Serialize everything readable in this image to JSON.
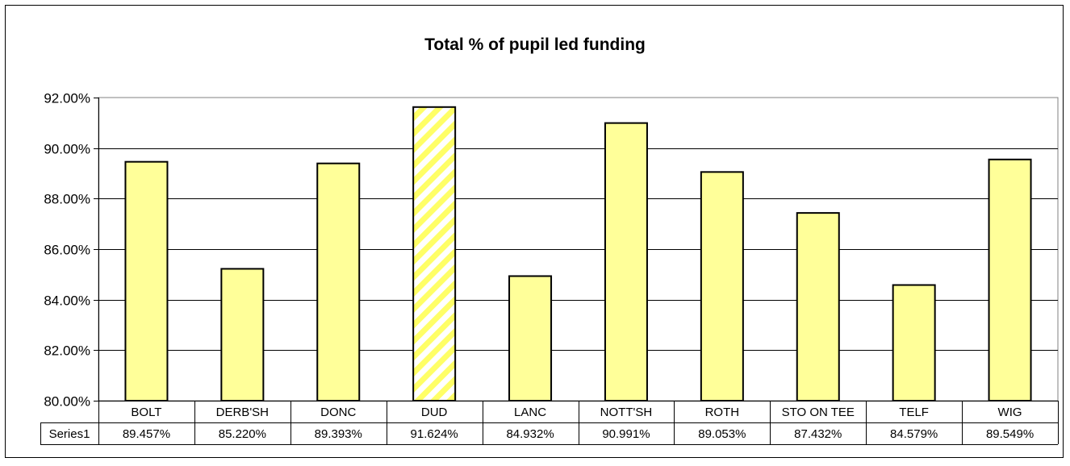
{
  "chart_data": {
    "type": "bar",
    "title": "Total % of pupil led funding",
    "categories": [
      "BOLT",
      "DERB'SH",
      "DONC",
      "DUD",
      "LANC",
      "NOTT'SH",
      "ROTH",
      "STO ON TEE",
      "TELF",
      "WIG"
    ],
    "series": [
      {
        "name": "Series1",
        "values": [
          89.457,
          85.22,
          89.393,
          91.624,
          84.932,
          90.991,
          89.053,
          87.432,
          84.579,
          89.549
        ],
        "value_labels": [
          "89.457%",
          "85.220%",
          "89.393%",
          "91.624%",
          "84.932%",
          "90.991%",
          "89.053%",
          "87.432%",
          "84.579%",
          "89.549%"
        ]
      }
    ],
    "highlighted_category": "DUD",
    "ylim": [
      80,
      92
    ],
    "y_ticks": [
      "80.00%",
      "82.00%",
      "84.00%",
      "86.00%",
      "88.00%",
      "90.00%",
      "92.00%"
    ],
    "y_tick_values": [
      80,
      82,
      84,
      86,
      88,
      90,
      92
    ],
    "grid": true,
    "data_table": true,
    "colors": {
      "bar_fill": "#ffff99",
      "highlight_stripe": "#ffff66",
      "highlight_base": "#ffffff",
      "plot_background": "#ffffff",
      "border": "#000000",
      "plot_border": "#808080"
    }
  }
}
